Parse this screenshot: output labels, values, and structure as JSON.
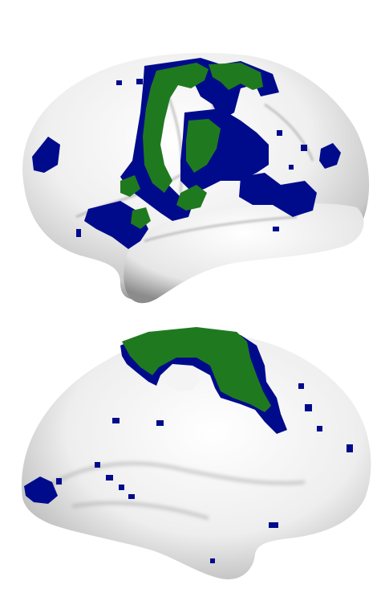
{
  "figure": {
    "views": [
      {
        "id": "lateral",
        "label": ""
      },
      {
        "id": "medial",
        "label": ""
      }
    ],
    "colors": {
      "background": "#ffffff",
      "surface": "#f2f2f2",
      "surface_shade": "#8a8a8a",
      "map_primary": "#1f7a1f",
      "map_secondary": "#000b8c"
    }
  }
}
